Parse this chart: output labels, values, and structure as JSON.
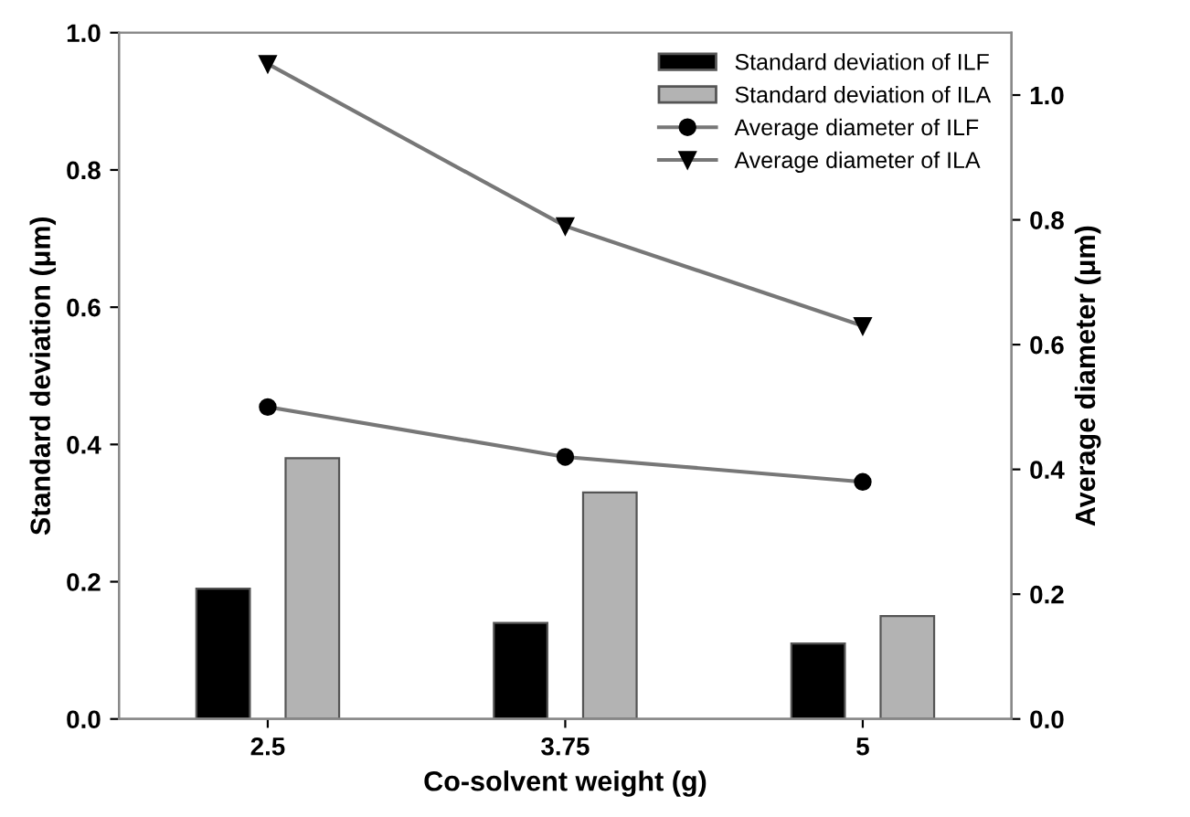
{
  "chart_data": {
    "type": "bar",
    "xlabel": "Co-solvent weight (g)",
    "ylabel": "Standard deviation (μm)",
    "y2label": "Average diameter (μm)",
    "categories": [
      "2.5",
      "3.75",
      "5"
    ],
    "series": [
      {
        "name": "Standard deviation of ILF",
        "color": "#000000",
        "values": [
          0.19,
          0.14,
          0.11
        ]
      },
      {
        "name": "Standard deviation of ILA",
        "color": "#b3b3b3",
        "values": [
          0.38,
          0.33,
          0.15
        ]
      },
      {
        "name": "Average diameter of ILF",
        "type": "line",
        "axis": "y2",
        "color": "#000000",
        "marker": "circle",
        "values": [
          0.5,
          0.42,
          0.38
        ]
      },
      {
        "name": "Average diameter of ILA",
        "type": "line",
        "axis": "y2",
        "color": "#000000",
        "marker": "triangle",
        "values": [
          1.05,
          0.79,
          0.63
        ]
      }
    ],
    "ylim": [
      0,
      1.0
    ],
    "yticks": [
      "0.0",
      0.2,
      0.4,
      0.6,
      0.8,
      "1.0"
    ],
    "y2lim": [
      0,
      1.1
    ],
    "y2ticks": [
      "0.0",
      0.2,
      0.4,
      0.6,
      0.8,
      "1.0"
    ],
    "legend": "top right",
    "grid": false
  }
}
